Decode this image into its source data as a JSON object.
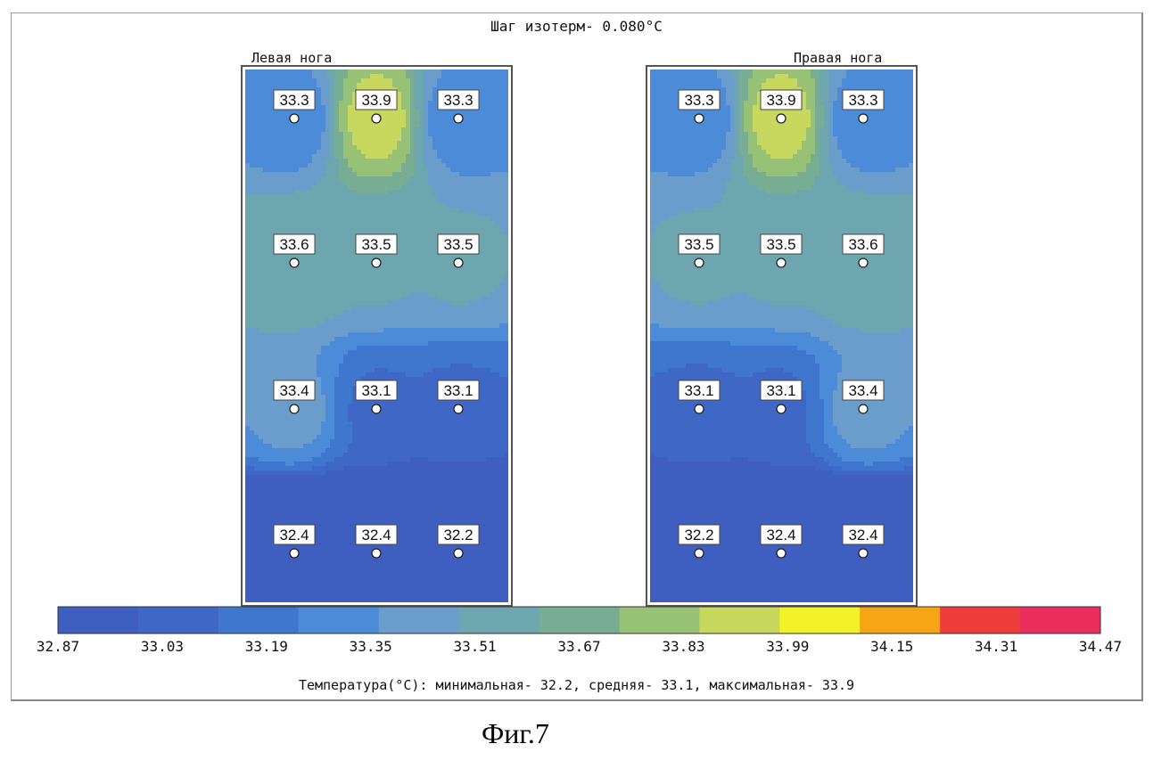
{
  "header": {
    "isotherm_step": "Шаг изотерм- 0.080°C"
  },
  "panels": {
    "left": {
      "label": "Левая нога"
    },
    "right": {
      "label": "Правая нога"
    }
  },
  "chart_data": [
    {
      "type": "heatmap",
      "title": "Левая нога",
      "sensors": [
        {
          "row": 1,
          "col": 1,
          "value": 33.3
        },
        {
          "row": 1,
          "col": 2,
          "value": 33.9
        },
        {
          "row": 1,
          "col": 3,
          "value": 33.3
        },
        {
          "row": 2,
          "col": 1,
          "value": 33.6
        },
        {
          "row": 2,
          "col": 2,
          "value": 33.5
        },
        {
          "row": 2,
          "col": 3,
          "value": 33.5
        },
        {
          "row": 3,
          "col": 1,
          "value": 33.4
        },
        {
          "row": 3,
          "col": 2,
          "value": 33.1
        },
        {
          "row": 3,
          "col": 3,
          "value": 33.1
        },
        {
          "row": 4,
          "col": 1,
          "value": 32.4
        },
        {
          "row": 4,
          "col": 2,
          "value": 32.4
        },
        {
          "row": 4,
          "col": 3,
          "value": 32.2
        }
      ]
    },
    {
      "type": "heatmap",
      "title": "Правая нога",
      "sensors": [
        {
          "row": 1,
          "col": 1,
          "value": 33.3
        },
        {
          "row": 1,
          "col": 2,
          "value": 33.9
        },
        {
          "row": 1,
          "col": 3,
          "value": 33.3
        },
        {
          "row": 2,
          "col": 1,
          "value": 33.5
        },
        {
          "row": 2,
          "col": 2,
          "value": 33.5
        },
        {
          "row": 2,
          "col": 3,
          "value": 33.6
        },
        {
          "row": 3,
          "col": 1,
          "value": 33.1
        },
        {
          "row": 3,
          "col": 2,
          "value": 33.1
        },
        {
          "row": 3,
          "col": 3,
          "value": 33.4
        },
        {
          "row": 4,
          "col": 1,
          "value": 32.2
        },
        {
          "row": 4,
          "col": 2,
          "value": 32.4
        },
        {
          "row": 4,
          "col": 3,
          "value": 32.4
        }
      ]
    }
  ],
  "colorbar": {
    "ticks": [
      "32.87",
      "33.03",
      "33.19",
      "33.35",
      "33.51",
      "33.67",
      "33.83",
      "33.99",
      "34.15",
      "34.31",
      "34.47"
    ],
    "range": [
      32.87,
      34.47
    ],
    "colors": [
      "#3f5fc0",
      "#3e67c6",
      "#3f77cf",
      "#4b8bd8",
      "#6b9dcc",
      "#6ea6b0",
      "#77ad93",
      "#97c276",
      "#c8d75e",
      "#f2f226",
      "#f6a514",
      "#ef3d3a",
      "#e92d5c"
    ]
  },
  "footer": {
    "stats": "Температура(°C): минимальная-  32.2,  средняя-  33.1,  максимальная-  33.9"
  },
  "caption": "Фиг.7"
}
